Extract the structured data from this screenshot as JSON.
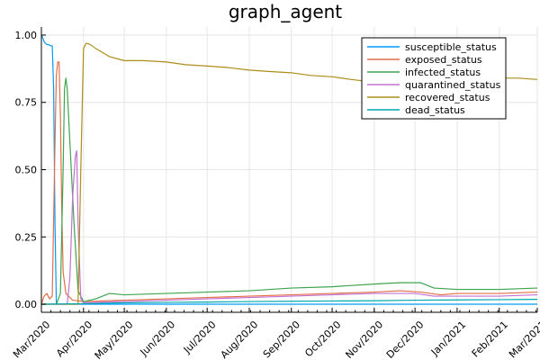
{
  "chart_data": {
    "type": "line",
    "title": "graph_agent",
    "xlabel": "",
    "ylabel": "",
    "xlim": [
      "2020-03-01",
      "2021-03-01"
    ],
    "ylim": [
      -0.03,
      1.03
    ],
    "x_ticks": [
      "Mar/2020",
      "Apr/2020",
      "May/2020",
      "Jun/2020",
      "Jul/2020",
      "Aug/2020",
      "Sep/2020",
      "Oct/2020",
      "Nov/2020",
      "Dec/2020",
      "Jan/2021",
      "Feb/2021",
      "Mar/2021"
    ],
    "y_ticks": [
      "0.00",
      "0.25",
      "0.50",
      "0.75",
      "1.00"
    ],
    "y_tick_values": [
      0,
      0.25,
      0.5,
      0.75,
      1.0
    ],
    "grid": true,
    "legend_position": "top-right",
    "series": [
      {
        "name": "susceptible_status",
        "color": "#009AFA",
        "points": [
          [
            "2020-03-01",
            1.0
          ],
          [
            "2020-03-02",
            0.99
          ],
          [
            "2020-03-03",
            0.975
          ],
          [
            "2020-03-05",
            0.965
          ],
          [
            "2020-03-06",
            0.965
          ],
          [
            "2020-03-08",
            0.96
          ],
          [
            "2020-03-09",
            0.96
          ],
          [
            "2020-03-10",
            0.8
          ],
          [
            "2020-03-11",
            0.3
          ],
          [
            "2020-03-12",
            0.0
          ],
          [
            "2020-03-20",
            0.0
          ],
          [
            "2020-04-01",
            0.0
          ],
          [
            "2021-03-01",
            0.0
          ]
        ]
      },
      {
        "name": "exposed_status",
        "color": "#E36F47",
        "points": [
          [
            "2020-03-01",
            0.0
          ],
          [
            "2020-03-03",
            0.03
          ],
          [
            "2020-03-05",
            0.04
          ],
          [
            "2020-03-07",
            0.02
          ],
          [
            "2020-03-09",
            0.03
          ],
          [
            "2020-03-11",
            0.6
          ],
          [
            "2020-03-12",
            0.85
          ],
          [
            "2020-03-13",
            0.9
          ],
          [
            "2020-03-14",
            0.9
          ],
          [
            "2020-03-15",
            0.7
          ],
          [
            "2020-03-16",
            0.35
          ],
          [
            "2020-03-17",
            0.12
          ],
          [
            "2020-03-19",
            0.04
          ],
          [
            "2020-03-24",
            0.015
          ],
          [
            "2020-04-01",
            0.01
          ],
          [
            "2020-05-01",
            0.015
          ],
          [
            "2020-06-01",
            0.02
          ],
          [
            "2020-07-01",
            0.025
          ],
          [
            "2020-08-01",
            0.03
          ],
          [
            "2020-09-01",
            0.035
          ],
          [
            "2020-10-01",
            0.04
          ],
          [
            "2020-11-01",
            0.045
          ],
          [
            "2020-11-20",
            0.05
          ],
          [
            "2020-12-05",
            0.045
          ],
          [
            "2020-12-20",
            0.035
          ],
          [
            "2021-01-01",
            0.04
          ],
          [
            "2021-02-01",
            0.04
          ],
          [
            "2021-03-01",
            0.045
          ]
        ]
      },
      {
        "name": "infected_status",
        "color": "#3EA44E",
        "points": [
          [
            "2020-03-01",
            0.0
          ],
          [
            "2020-03-12",
            0.0
          ],
          [
            "2020-03-15",
            0.04
          ],
          [
            "2020-03-17",
            0.5
          ],
          [
            "2020-03-18",
            0.8
          ],
          [
            "2020-03-19",
            0.84
          ],
          [
            "2020-03-20",
            0.8
          ],
          [
            "2020-03-21",
            0.7
          ],
          [
            "2020-03-23",
            0.5
          ],
          [
            "2020-03-25",
            0.3
          ],
          [
            "2020-03-28",
            0.05
          ],
          [
            "2020-04-01",
            0.01
          ],
          [
            "2020-04-10",
            0.02
          ],
          [
            "2020-04-20",
            0.04
          ],
          [
            "2020-05-01",
            0.035
          ],
          [
            "2020-06-01",
            0.04
          ],
          [
            "2020-07-01",
            0.045
          ],
          [
            "2020-08-01",
            0.05
          ],
          [
            "2020-09-01",
            0.06
          ],
          [
            "2020-10-01",
            0.065
          ],
          [
            "2020-11-01",
            0.075
          ],
          [
            "2020-11-20",
            0.08
          ],
          [
            "2020-12-05",
            0.08
          ],
          [
            "2020-12-15",
            0.06
          ],
          [
            "2021-01-01",
            0.055
          ],
          [
            "2021-02-01",
            0.055
          ],
          [
            "2021-03-01",
            0.06
          ]
        ]
      },
      {
        "name": "quarantined_status",
        "color": "#C271D2",
        "points": [
          [
            "2020-03-01",
            0.0
          ],
          [
            "2020-03-20",
            0.0
          ],
          [
            "2020-03-22",
            0.1
          ],
          [
            "2020-03-24",
            0.4
          ],
          [
            "2020-03-26",
            0.55
          ],
          [
            "2020-03-27",
            0.57
          ],
          [
            "2020-03-28",
            0.3
          ],
          [
            "2020-03-30",
            0.02
          ],
          [
            "2020-04-01",
            0.005
          ],
          [
            "2020-05-01",
            0.01
          ],
          [
            "2020-06-01",
            0.015
          ],
          [
            "2020-07-01",
            0.02
          ],
          [
            "2020-08-01",
            0.025
          ],
          [
            "2020-09-01",
            0.03
          ],
          [
            "2020-10-01",
            0.035
          ],
          [
            "2020-11-01",
            0.04
          ],
          [
            "2020-12-01",
            0.04
          ],
          [
            "2020-12-15",
            0.03
          ],
          [
            "2021-01-01",
            0.03
          ],
          [
            "2021-02-01",
            0.03
          ],
          [
            "2021-03-01",
            0.035
          ]
        ]
      },
      {
        "name": "recovered_status",
        "color": "#AC8D18",
        "points": [
          [
            "2020-03-01",
            0.0
          ],
          [
            "2020-03-28",
            0.0
          ],
          [
            "2020-03-30",
            0.5
          ],
          [
            "2020-04-01",
            0.95
          ],
          [
            "2020-04-03",
            0.97
          ],
          [
            "2020-04-06",
            0.965
          ],
          [
            "2020-04-10",
            0.95
          ],
          [
            "2020-04-20",
            0.92
          ],
          [
            "2020-05-01",
            0.905
          ],
          [
            "2020-05-15",
            0.905
          ],
          [
            "2020-06-01",
            0.9
          ],
          [
            "2020-06-15",
            0.89
          ],
          [
            "2020-07-01",
            0.885
          ],
          [
            "2020-07-15",
            0.88
          ],
          [
            "2020-08-01",
            0.87
          ],
          [
            "2020-08-15",
            0.865
          ],
          [
            "2020-09-01",
            0.86
          ],
          [
            "2020-09-15",
            0.85
          ],
          [
            "2020-10-01",
            0.845
          ],
          [
            "2020-10-15",
            0.835
          ],
          [
            "2020-11-01",
            0.825
          ],
          [
            "2020-11-15",
            0.82
          ],
          [
            "2020-12-01",
            0.815
          ],
          [
            "2020-12-15",
            0.83
          ],
          [
            "2021-01-01",
            0.84
          ],
          [
            "2021-01-15",
            0.84
          ],
          [
            "2021-02-01",
            0.84
          ],
          [
            "2021-02-15",
            0.84
          ],
          [
            "2021-03-01",
            0.835
          ]
        ]
      },
      {
        "name": "dead_status",
        "color": "#00A9AD",
        "points": [
          [
            "2020-03-01",
            0.0
          ],
          [
            "2020-04-01",
            0.002
          ],
          [
            "2020-05-01",
            0.005
          ],
          [
            "2020-06-01",
            0.007
          ],
          [
            "2020-07-01",
            0.008
          ],
          [
            "2020-08-01",
            0.01
          ],
          [
            "2020-09-01",
            0.011
          ],
          [
            "2020-10-01",
            0.012
          ],
          [
            "2020-11-01",
            0.013
          ],
          [
            "2020-12-01",
            0.015
          ],
          [
            "2021-01-01",
            0.016
          ],
          [
            "2021-02-01",
            0.017
          ],
          [
            "2021-03-01",
            0.018
          ]
        ]
      }
    ]
  }
}
